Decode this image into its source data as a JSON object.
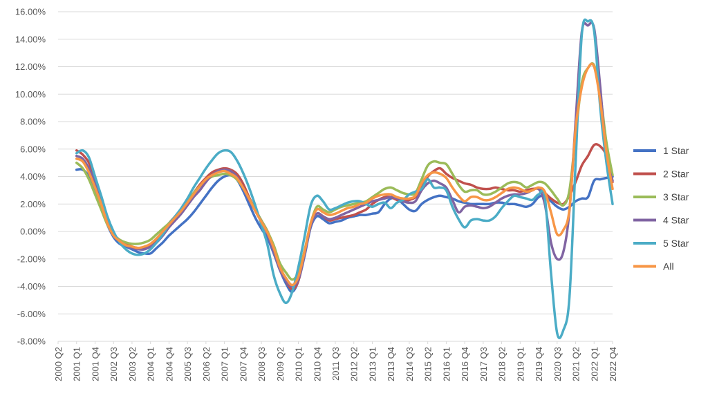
{
  "chart_data": {
    "type": "line",
    "title": "",
    "xlabel": "",
    "ylabel": "",
    "ylim": [
      -8,
      16
    ],
    "y_ticks": [
      "16.00%",
      "14.00%",
      "12.00%",
      "10.00%",
      "8.00%",
      "6.00%",
      "4.00%",
      "2.00%",
      "0.00%",
      "-2.00%",
      "-4.00%",
      "-6.00%",
      "-8.00%"
    ],
    "y_tick_values": [
      16,
      14,
      12,
      10,
      8,
      6,
      4,
      2,
      0,
      -2,
      -4,
      -6,
      -8
    ],
    "grid": "horizontal",
    "legend_position": "right",
    "x_tick_labels": [
      "2000 Q2",
      "2001 Q1",
      "2001 Q4",
      "2002 Q3",
      "2003 Q2",
      "2004 Q1",
      "2004 Q4",
      "2005 Q3",
      "2006 Q2",
      "2007 Q1",
      "2007 Q4",
      "2008 Q3",
      "2009 Q2",
      "2010 Q1",
      "2010 Q4",
      "2011 Q3",
      "2012 Q2",
      "2013 Q1",
      "2013 Q4",
      "2014 Q3",
      "2015 Q2",
      "2016 Q1",
      "2016 Q4",
      "2017 Q3",
      "2018 Q2",
      "2019 Q1",
      "2019 Q4",
      "2020 Q3",
      "2021 Q2",
      "2022 Q1",
      "2022 Q4"
    ],
    "x": [
      "2001 Q1",
      "2001 Q2",
      "2001 Q3",
      "2001 Q4",
      "2002 Q1",
      "2002 Q2",
      "2002 Q3",
      "2002 Q4",
      "2003 Q1",
      "2003 Q2",
      "2003 Q3",
      "2003 Q4",
      "2004 Q1",
      "2004 Q2",
      "2004 Q3",
      "2004 Q4",
      "2005 Q1",
      "2005 Q2",
      "2005 Q3",
      "2005 Q4",
      "2006 Q1",
      "2006 Q2",
      "2006 Q3",
      "2006 Q4",
      "2007 Q1",
      "2007 Q2",
      "2007 Q3",
      "2007 Q4",
      "2008 Q1",
      "2008 Q2",
      "2008 Q3",
      "2008 Q4",
      "2009 Q1",
      "2009 Q2",
      "2009 Q3",
      "2009 Q4",
      "2010 Q1",
      "2010 Q2",
      "2010 Q3",
      "2010 Q4",
      "2011 Q1",
      "2011 Q2",
      "2011 Q3",
      "2011 Q4",
      "2012 Q1",
      "2012 Q2",
      "2012 Q3",
      "2012 Q4",
      "2013 Q1",
      "2013 Q2",
      "2013 Q3",
      "2013 Q4",
      "2014 Q1",
      "2014 Q2",
      "2014 Q3",
      "2014 Q4",
      "2015 Q1",
      "2015 Q2",
      "2015 Q3",
      "2015 Q4",
      "2016 Q1",
      "2016 Q2",
      "2016 Q3",
      "2016 Q4",
      "2017 Q1",
      "2017 Q2",
      "2017 Q3",
      "2017 Q4",
      "2018 Q1",
      "2018 Q2",
      "2018 Q3",
      "2018 Q4",
      "2019 Q1",
      "2019 Q2",
      "2019 Q3",
      "2019 Q4",
      "2020 Q1",
      "2020 Q2",
      "2020 Q3",
      "2020 Q4",
      "2021 Q1",
      "2021 Q2",
      "2021 Q3",
      "2021 Q4",
      "2022 Q1",
      "2022 Q2",
      "2022 Q3",
      "2022 Q4"
    ],
    "series": [
      {
        "name": "1 Star",
        "color": "#4472C4",
        "values": [
          4.5,
          4.5,
          4.0,
          3.0,
          1.8,
          0.5,
          -0.4,
          -0.9,
          -1.1,
          -1.3,
          -1.5,
          -1.6,
          -1.6,
          -1.2,
          -0.8,
          -0.3,
          0.1,
          0.5,
          0.9,
          1.4,
          2.0,
          2.6,
          3.2,
          3.7,
          4.0,
          4.1,
          3.8,
          3.0,
          2.0,
          1.0,
          0.2,
          -0.5,
          -1.6,
          -2.8,
          -3.8,
          -4.4,
          -3.6,
          -1.8,
          0.3,
          1.1,
          0.9,
          0.6,
          0.7,
          0.8,
          1.0,
          1.1,
          1.2,
          1.2,
          1.3,
          1.4,
          2.0,
          2.4,
          2.4,
          2.0,
          1.6,
          1.5,
          2.0,
          2.3,
          2.5,
          2.6,
          2.5,
          2.4,
          2.2,
          2.1,
          2.0,
          2.0,
          2.0,
          2.0,
          2.1,
          2.1,
          2.0,
          2.0,
          1.9,
          1.8,
          2.0,
          2.5,
          2.6,
          2.2,
          1.8,
          1.6,
          1.8,
          2.2,
          2.4,
          2.5,
          3.7,
          3.8,
          3.9,
          4.0
        ]
      },
      {
        "name": "2 Star",
        "color": "#C0504D",
        "values": [
          5.9,
          5.6,
          5.0,
          3.8,
          2.3,
          0.8,
          -0.2,
          -0.7,
          -0.9,
          -1.1,
          -1.2,
          -1.2,
          -1.0,
          -0.6,
          0.0,
          0.6,
          1.1,
          1.6,
          2.2,
          2.8,
          3.4,
          3.9,
          4.3,
          4.5,
          4.6,
          4.5,
          4.2,
          3.5,
          2.5,
          1.6,
          0.8,
          0.0,
          -1.2,
          -2.5,
          -3.6,
          -4.2,
          -3.6,
          -1.6,
          0.5,
          1.3,
          1.1,
          0.8,
          0.9,
          1.0,
          1.1,
          1.2,
          1.4,
          1.6,
          2.0,
          2.3,
          2.5,
          2.5,
          2.3,
          2.2,
          2.3,
          2.5,
          3.2,
          4.0,
          4.4,
          4.6,
          4.2,
          3.9,
          3.7,
          3.5,
          3.4,
          3.2,
          3.1,
          3.1,
          3.2,
          3.1,
          3.0,
          3.0,
          2.9,
          3.0,
          3.1,
          3.1,
          2.8,
          2.4,
          2.1,
          2.0,
          2.6,
          3.6,
          4.8,
          5.5,
          6.3,
          6.2,
          5.5,
          3.6
        ]
      },
      {
        "name": "3 Star",
        "color": "#9BBB59",
        "values": [
          5.0,
          4.6,
          3.8,
          2.7,
          1.6,
          0.5,
          -0.2,
          -0.6,
          -0.8,
          -0.9,
          -0.9,
          -0.8,
          -0.6,
          -0.2,
          0.2,
          0.6,
          1.1,
          1.6,
          2.2,
          2.8,
          3.3,
          3.7,
          4.0,
          4.1,
          4.2,
          4.1,
          3.8,
          3.2,
          2.4,
          1.6,
          0.8,
          0.0,
          -1.0,
          -2.3,
          -3.0,
          -3.5,
          -3.0,
          -1.4,
          0.6,
          1.8,
          1.6,
          1.4,
          1.6,
          1.8,
          1.9,
          2.0,
          2.1,
          2.2,
          2.5,
          2.8,
          3.1,
          3.2,
          3.0,
          2.8,
          2.7,
          2.8,
          3.8,
          4.8,
          5.1,
          5.0,
          4.9,
          4.2,
          3.4,
          2.9,
          3.0,
          3.0,
          2.7,
          2.7,
          2.9,
          3.2,
          3.5,
          3.6,
          3.5,
          3.2,
          3.4,
          3.6,
          3.5,
          3.0,
          2.4,
          1.9,
          3.0,
          7.0,
          10.8,
          11.9,
          12.1,
          10.0,
          6.5,
          4.1
        ]
      },
      {
        "name": "4 Star",
        "color": "#8064A2",
        "values": [
          5.5,
          5.3,
          4.6,
          3.6,
          2.2,
          0.8,
          -0.2,
          -0.7,
          -1.0,
          -1.2,
          -1.3,
          -1.3,
          -1.1,
          -0.8,
          -0.3,
          0.3,
          0.8,
          1.3,
          1.9,
          2.5,
          3.0,
          3.6,
          4.1,
          4.4,
          4.5,
          4.4,
          4.0,
          3.2,
          2.3,
          1.5,
          0.7,
          -0.2,
          -1.5,
          -2.8,
          -3.6,
          -4.0,
          -3.5,
          -1.7,
          0.4,
          1.3,
          1.1,
          0.9,
          1.0,
          1.2,
          1.4,
          1.6,
          1.8,
          2.0,
          2.2,
          2.3,
          2.4,
          2.5,
          2.4,
          2.2,
          2.1,
          2.2,
          3.0,
          3.5,
          3.7,
          3.5,
          3.2,
          2.3,
          1.4,
          1.8,
          1.9,
          1.8,
          1.7,
          1.8,
          2.1,
          2.4,
          2.6,
          2.7,
          2.7,
          2.8,
          3.0,
          3.1,
          2.0,
          -0.8,
          -2.0,
          -1.5,
          1.5,
          8.0,
          14.5,
          15.0,
          14.8,
          10.5,
          5.5,
          3.7
        ]
      },
      {
        "name": "5 Star",
        "color": "#4BACC6",
        "values": [
          5.7,
          5.9,
          5.4,
          4.0,
          2.6,
          1.1,
          0.0,
          -0.8,
          -1.3,
          -1.6,
          -1.7,
          -1.6,
          -1.3,
          -0.8,
          -0.2,
          0.5,
          1.1,
          1.7,
          2.4,
          3.2,
          3.9,
          4.6,
          5.2,
          5.7,
          5.9,
          5.8,
          5.2,
          4.3,
          3.2,
          1.9,
          0.5,
          -1.0,
          -3.2,
          -4.5,
          -5.2,
          -4.4,
          -2.6,
          -0.4,
          1.9,
          2.6,
          2.2,
          1.6,
          1.7,
          1.9,
          2.1,
          2.2,
          2.2,
          2.0,
          1.8,
          2.0,
          2.1,
          1.7,
          2.1,
          2.3,
          2.7,
          2.9,
          3.1,
          3.8,
          3.2,
          3.2,
          3.0,
          1.8,
          0.9,
          0.3,
          0.8,
          0.9,
          0.8,
          0.8,
          1.1,
          1.7,
          2.2,
          2.6,
          2.5,
          2.4,
          2.3,
          2.7,
          2.5,
          -3.0,
          -7.4,
          -7.2,
          -4.8,
          5.0,
          14.3,
          15.3,
          14.6,
          9.0,
          5.0,
          2.0
        ]
      },
      {
        "name": "All",
        "color": "#F79646",
        "values": [
          5.3,
          5.1,
          4.3,
          3.2,
          2.0,
          0.6,
          -0.3,
          -0.7,
          -1.0,
          -1.1,
          -1.2,
          -1.1,
          -0.9,
          -0.5,
          0.0,
          0.5,
          1.0,
          1.5,
          2.1,
          2.7,
          3.3,
          3.8,
          4.1,
          4.3,
          4.4,
          4.2,
          3.9,
          3.2,
          2.4,
          1.5,
          0.7,
          -0.1,
          -1.2,
          -2.6,
          -3.4,
          -3.9,
          -3.3,
          -1.5,
          0.6,
          1.6,
          1.4,
          1.2,
          1.3,
          1.5,
          1.7,
          1.8,
          2.0,
          2.1,
          2.4,
          2.6,
          2.7,
          2.7,
          2.5,
          2.4,
          2.4,
          2.6,
          3.5,
          4.1,
          4.3,
          4.2,
          3.9,
          3.2,
          2.6,
          2.2,
          2.5,
          2.5,
          2.3,
          2.3,
          2.5,
          2.8,
          3.1,
          3.2,
          3.1,
          2.9,
          3.0,
          3.2,
          2.9,
          1.4,
          -0.2,
          0.1,
          1.6,
          7.5,
          10.5,
          11.9,
          12.0,
          9.5,
          5.8,
          3.1
        ]
      }
    ]
  }
}
